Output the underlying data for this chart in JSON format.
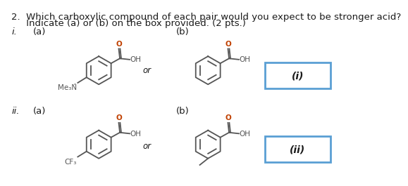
{
  "title_line1": "2.  Which carboxylic compound of each pair would you expect to be stronger acid?",
  "title_line2": "     Indicate (a) or (b) on the box provided. (2 pts.)",
  "bg_color": "#ffffff",
  "text_color": "#1a1a1a",
  "structure_color_dark": "#555555",
  "structure_color_O": "#c04000",
  "box_color": "#5a9fd4",
  "font_size_title": 9.5,
  "font_size_label": 9.5,
  "font_size_box": 9,
  "i_label": "i.",
  "ii_label": "ii.",
  "a_label": "(a)",
  "b_label": "(b)",
  "or_text": "or",
  "box1_text": "(i)",
  "box2_text": "(ii)"
}
